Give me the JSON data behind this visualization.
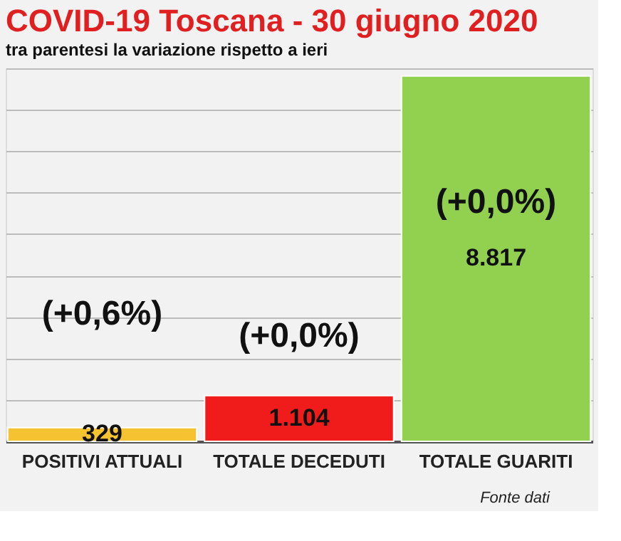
{
  "chart_data": {
    "type": "bar",
    "title": "COVID-19 Toscana - 30 giugno 2020",
    "subtitle": "tra parentesi la variazione rispetto a ieri",
    "categories": [
      "POSITIVI ATTUALI",
      "TOTALE DECEDUTI",
      "TOTALE GUARITI"
    ],
    "values": [
      329,
      1104,
      8817
    ],
    "colors": [
      "#f5c232",
      "#f01c1c",
      "#92d050"
    ],
    "value_labels": [
      "329",
      "1.104",
      "8.817"
    ],
    "ylim": [
      0,
      9000
    ],
    "grid": "y",
    "tick_labels": "x",
    "annotations": [
      "(+0,6%)",
      "(+0,0%)",
      "(+0,0%)",
      "Fonte dati"
    ]
  }
}
